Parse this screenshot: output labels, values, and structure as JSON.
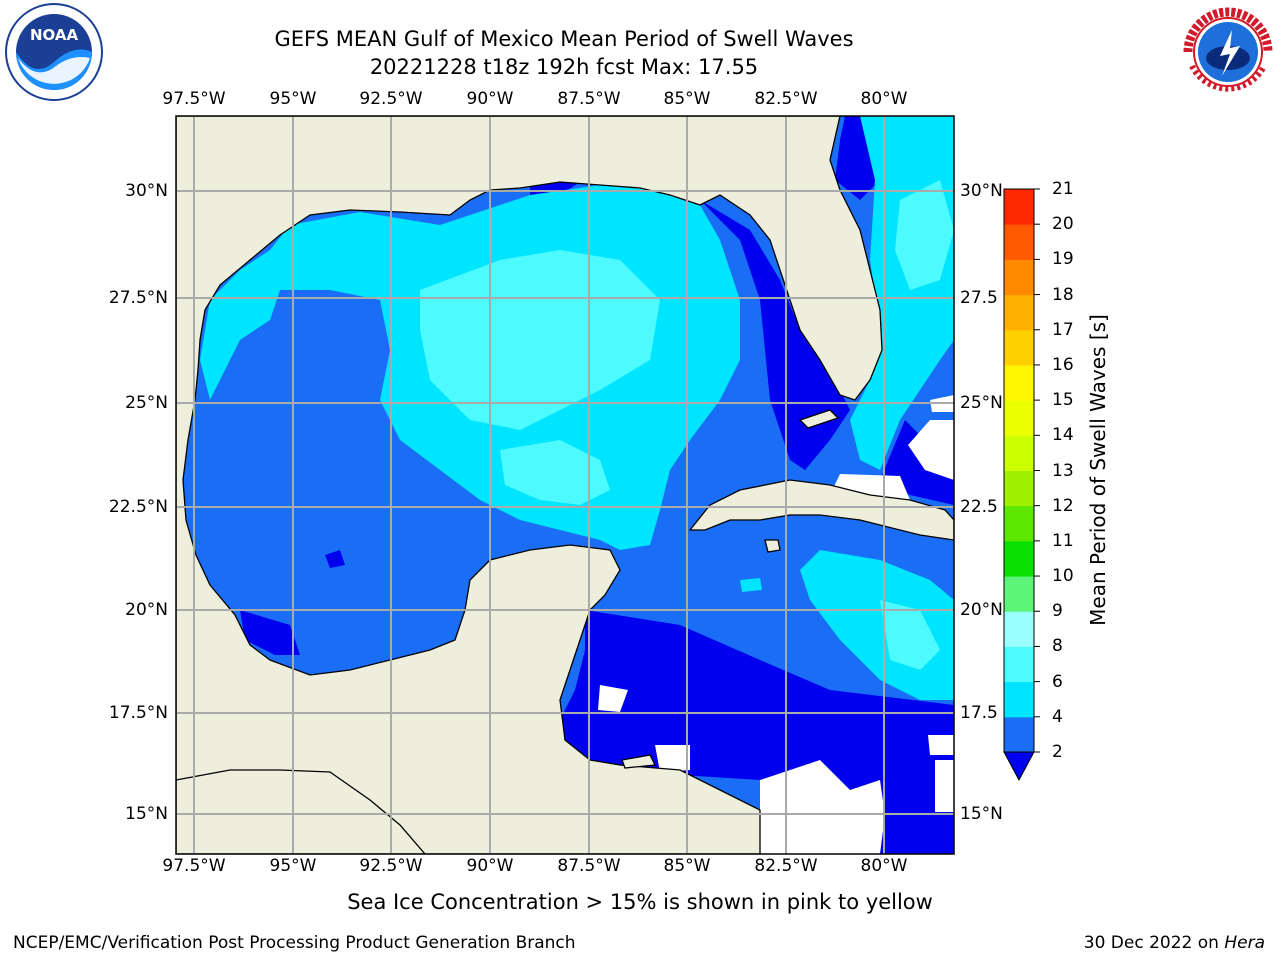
{
  "title_line1": "GEFS MEAN Gulf of Mexico Mean Period of Swell Waves",
  "title_line2": "20221228 t18z 192h fcst   Max: 17.55",
  "lon_labels": [
    "97.5°W",
    "95°W",
    "92.5°W",
    "90°W",
    "87.5°W",
    "85°W",
    "82.5°W",
    "80°W"
  ],
  "lat_labels_left": [
    "30°N",
    "27.5°N",
    "25°N",
    "22.5°N",
    "20°N",
    "17.5°N",
    "15°N"
  ],
  "lat_labels_right": [
    "30°N",
    "27.5",
    "25°N",
    "22.5",
    "20°N",
    "17.5",
    "15°N"
  ],
  "colorbar": {
    "label": "Mean Period of Swell Waves [s]",
    "ticks": [
      "2",
      "4",
      "6",
      "8",
      "9",
      "10",
      "11",
      "12",
      "13",
      "14",
      "15",
      "16",
      "17",
      "18",
      "19",
      "20",
      "21"
    ],
    "colors": [
      "#1a6ef5",
      "#00e5ff",
      "#4dfaff",
      "#99ffff",
      "#5cf57a",
      "#0ae000",
      "#5ce600",
      "#9ef000",
      "#ccff00",
      "#eaff00",
      "#fff500",
      "#ffd000",
      "#ffb000",
      "#ff8a00",
      "#ff5a00",
      "#ff2a00"
    ],
    "extend_color": "#0000ee"
  },
  "subtitle": "Sea Ice Concentration > 15% is shown in pink to yellow",
  "footer_left": "NCEP/EMC/Verification Post Processing Product Generation Branch",
  "footer_right_date": "30 Dec 2022 on ",
  "footer_right_host": "Hera",
  "logos": {
    "noaa": "NOAA",
    "nws": "NATIONAL WEATHER SERVICE"
  },
  "map_colors": {
    "land": "#eeeedd",
    "deep_blue": "#0000ee",
    "medium_blue": "#1a6ef5",
    "cyan": "#00e5ff",
    "light_cyan": "#4dfaff",
    "green": "#33ee33",
    "orange": "#ff9900"
  }
}
